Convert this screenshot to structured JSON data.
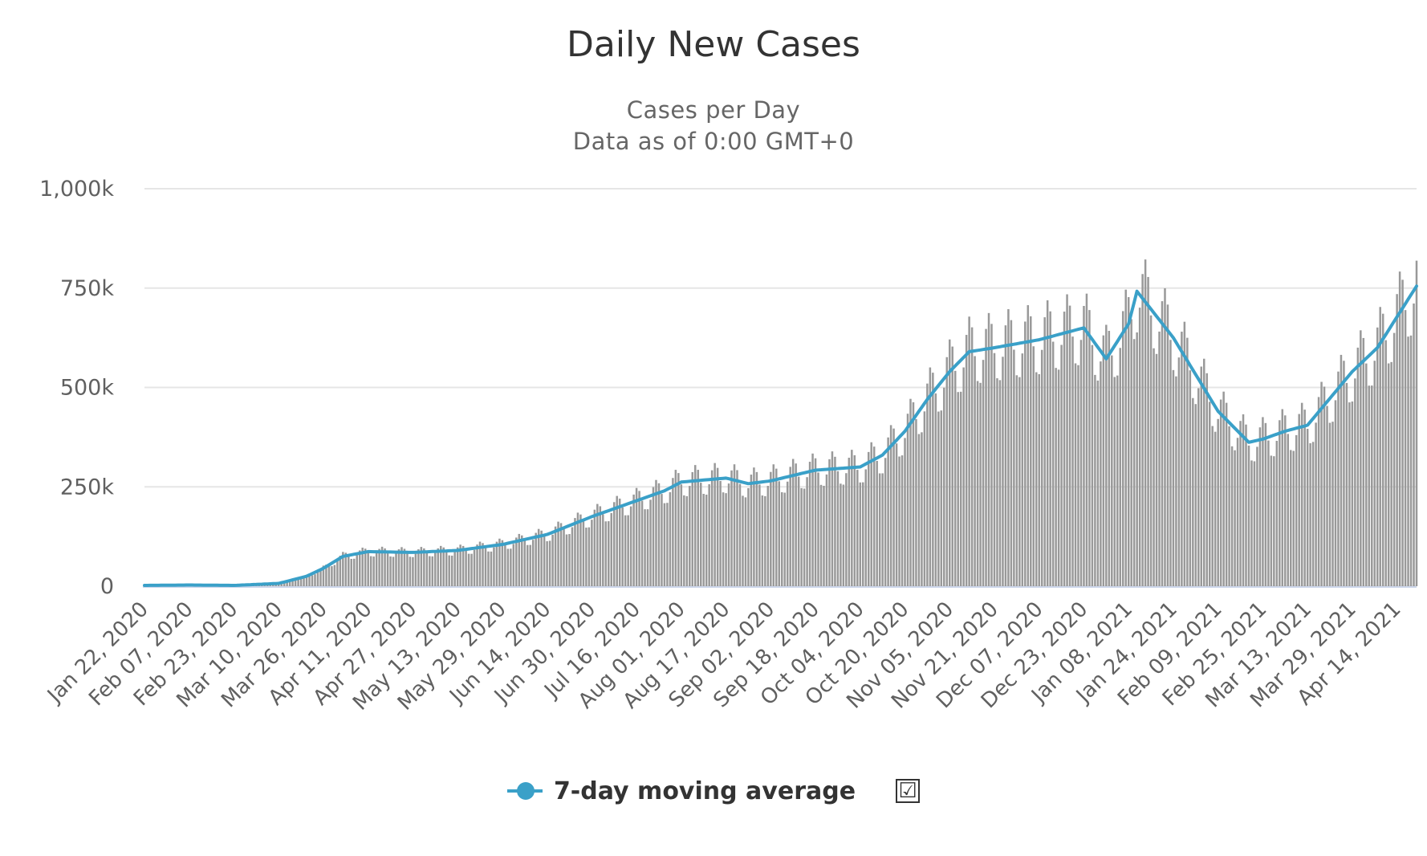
{
  "chart_data": {
    "type": "bar",
    "title": "Daily New Cases",
    "subtitle": [
      "Cases per Day",
      "Data as of 0:00 GMT+0"
    ],
    "ylim": [
      0,
      1000000
    ],
    "y_ticks": [
      0,
      250000,
      500000,
      750000,
      1000000
    ],
    "y_tick_labels": [
      "0",
      "250k",
      "500k",
      "750k",
      "1,000k"
    ],
    "x_ticks": [
      "Jan 22, 2020",
      "Feb 07, 2020",
      "Feb 23, 2020",
      "Mar 10, 2020",
      "Mar 26, 2020",
      "Apr 11, 2020",
      "Apr 27, 2020",
      "May 13, 2020",
      "May 29, 2020",
      "Jun 14, 2020",
      "Jun 30, 2020",
      "Jul 16, 2020",
      "Aug 01, 2020",
      "Aug 17, 2020",
      "Sep 02, 2020",
      "Sep 18, 2020",
      "Oct 04, 2020",
      "Oct 20, 2020",
      "Nov 05, 2020",
      "Nov 21, 2020",
      "Dec 07, 2020",
      "Dec 23, 2020",
      "Jan 08, 2021",
      "Jan 24, 2021",
      "Feb 09, 2021",
      "Feb 25, 2021",
      "Mar 13, 2021",
      "Mar 29, 2021",
      "Apr 14, 2021"
    ],
    "x_start": "Jan 22, 2020",
    "x_end": "Apr 21, 2021",
    "grid": true,
    "bar_color": "#999999",
    "line_color": "#3aa0c8",
    "legend_position": "bottom",
    "series": [
      {
        "name": "7-day moving average",
        "type": "line",
        "points": [
          [
            "Jan 22, 2020",
            2000
          ],
          [
            "Feb 07, 2020",
            3000
          ],
          [
            "Feb 23, 2020",
            2000
          ],
          [
            "Mar 10, 2020",
            7000
          ],
          [
            "Mar 20, 2020",
            25000
          ],
          [
            "Mar 26, 2020",
            45000
          ],
          [
            "Apr 02, 2020",
            75000
          ],
          [
            "Apr 11, 2020",
            87000
          ],
          [
            "Apr 27, 2020",
            85000
          ],
          [
            "May 13, 2020",
            90000
          ],
          [
            "May 29, 2020",
            105000
          ],
          [
            "Jun 14, 2020",
            130000
          ],
          [
            "Jun 30, 2020",
            175000
          ],
          [
            "Jul 16, 2020",
            215000
          ],
          [
            "Jul 26, 2020",
            240000
          ],
          [
            "Aug 01, 2020",
            262000
          ],
          [
            "Aug 17, 2020",
            272000
          ],
          [
            "Aug 25, 2020",
            258000
          ],
          [
            "Sep 02, 2020",
            265000
          ],
          [
            "Sep 18, 2020",
            292000
          ],
          [
            "Oct 04, 2020",
            300000
          ],
          [
            "Oct 12, 2020",
            330000
          ],
          [
            "Oct 20, 2020",
            390000
          ],
          [
            "Oct 28, 2020",
            470000
          ],
          [
            "Nov 05, 2020",
            540000
          ],
          [
            "Nov 12, 2020",
            590000
          ],
          [
            "Nov 21, 2020",
            600000
          ],
          [
            "Dec 07, 2020",
            620000
          ],
          [
            "Dec 23, 2020",
            650000
          ],
          [
            "Dec 31, 2020",
            572000
          ],
          [
            "Jan 08, 2021",
            660000
          ],
          [
            "Jan 11, 2021",
            742000
          ],
          [
            "Jan 24, 2021",
            625000
          ],
          [
            "Feb 09, 2021",
            440000
          ],
          [
            "Feb 20, 2021",
            362000
          ],
          [
            "Feb 25, 2021",
            370000
          ],
          [
            "Mar 05, 2021",
            390000
          ],
          [
            "Mar 13, 2021",
            405000
          ],
          [
            "Mar 29, 2021",
            540000
          ],
          [
            "Apr 07, 2021",
            600000
          ],
          [
            "Apr 21, 2021",
            755000
          ]
        ]
      }
    ],
    "daily_cases_shape": [
      [
        "Jan 22, 2020",
        2000
      ],
      [
        "Feb 07, 2020",
        3000
      ],
      [
        "Feb 23, 2020",
        2000
      ],
      [
        "Mar 10, 2020",
        7000
      ],
      [
        "Mar 20, 2020",
        25000
      ],
      [
        "Mar 26, 2020",
        45000
      ],
      [
        "Apr 02, 2020",
        75000
      ],
      [
        "Apr 11, 2020",
        87000
      ],
      [
        "Apr 27, 2020",
        85000
      ],
      [
        "May 13, 2020",
        90000
      ],
      [
        "May 29, 2020",
        105000
      ],
      [
        "Jun 14, 2020",
        130000
      ],
      [
        "Jun 30, 2020",
        175000
      ],
      [
        "Jul 16, 2020",
        215000
      ],
      [
        "Jul 26, 2020",
        240000
      ],
      [
        "Aug 01, 2020",
        262000
      ],
      [
        "Aug 17, 2020",
        272000
      ],
      [
        "Aug 25, 2020",
        258000
      ],
      [
        "Sep 02, 2020",
        265000
      ],
      [
        "Sep 18, 2020",
        292000
      ],
      [
        "Oct 04, 2020",
        300000
      ],
      [
        "Oct 12, 2020",
        330000
      ],
      [
        "Oct 20, 2020",
        390000
      ],
      [
        "Oct 28, 2020",
        470000
      ],
      [
        "Nov 05, 2020",
        540000
      ],
      [
        "Nov 12, 2020",
        590000
      ],
      [
        "Nov 21, 2020",
        600000
      ],
      [
        "Dec 07, 2020",
        620000
      ],
      [
        "Dec 23, 2020",
        650000
      ],
      [
        "Dec 31, 2020",
        572000
      ],
      [
        "Jan 08, 2021",
        660000
      ],
      [
        "Jan 11, 2021",
        742000
      ],
      [
        "Jan 24, 2021",
        625000
      ],
      [
        "Feb 09, 2021",
        440000
      ],
      [
        "Feb 20, 2021",
        362000
      ],
      [
        "Feb 25, 2021",
        370000
      ],
      [
        "Mar 05, 2021",
        390000
      ],
      [
        "Mar 13, 2021",
        405000
      ],
      [
        "Mar 29, 2021",
        540000
      ],
      [
        "Apr 07, 2021",
        600000
      ],
      [
        "Apr 21, 2021",
        755000
      ]
    ],
    "daily_cases_weekly_variation": 0.15
  },
  "legend": {
    "label": "7-day moving average",
    "checkbox": "☑"
  }
}
